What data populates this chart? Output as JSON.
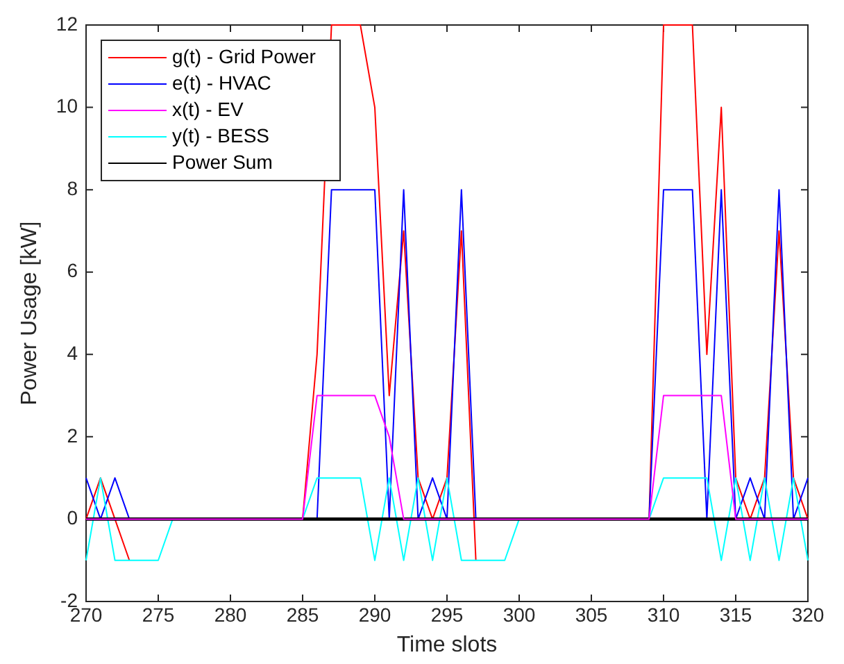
{
  "chart_data": {
    "type": "line",
    "xlabel": "Time slots",
    "ylabel": "Power Usage [kW]",
    "x": [
      270,
      271,
      272,
      273,
      274,
      275,
      276,
      277,
      278,
      279,
      280,
      281,
      282,
      283,
      284,
      285,
      286,
      287,
      288,
      289,
      290,
      291,
      292,
      293,
      294,
      295,
      296,
      297,
      298,
      299,
      300,
      301,
      302,
      303,
      304,
      305,
      306,
      307,
      308,
      309,
      310,
      311,
      312,
      313,
      314,
      315,
      316,
      317,
      318,
      319,
      320
    ],
    "series": [
      {
        "name": "g(t) - Grid Power",
        "color": "#ff0000",
        "values": [
          0,
          1,
          0,
          -1,
          null,
          null,
          0,
          0,
          0,
          0,
          0,
          0,
          0,
          0,
          0,
          0,
          4,
          12,
          12,
          12,
          10,
          3,
          7,
          1,
          0,
          1,
          7,
          -1,
          null,
          null,
          0,
          0,
          0,
          0,
          0,
          0,
          0,
          0,
          0,
          0,
          12,
          12,
          12,
          4,
          10,
          1,
          0,
          1,
          7,
          1,
          0
        ]
      },
      {
        "name": "e(t) - HVAC",
        "color": "#0000ff",
        "values": [
          1,
          0,
          1,
          0,
          0,
          0,
          0,
          0,
          0,
          0,
          0,
          0,
          0,
          0,
          0,
          0,
          0,
          8,
          8,
          8,
          8,
          0,
          8,
          0,
          1,
          0,
          8,
          0,
          0,
          0,
          0,
          0,
          0,
          0,
          0,
          0,
          0,
          0,
          0,
          0,
          8,
          8,
          8,
          0,
          8,
          0,
          1,
          0,
          8,
          0,
          1
        ]
      },
      {
        "name": "x(t) - EV",
        "color": "#ff00ff",
        "values": [
          0,
          0,
          0,
          0,
          0,
          0,
          0,
          0,
          0,
          0,
          0,
          0,
          0,
          0,
          0,
          0,
          3,
          3,
          3,
          3,
          3,
          2,
          0,
          0,
          0,
          0,
          0,
          0,
          0,
          0,
          0,
          0,
          0,
          0,
          0,
          0,
          0,
          0,
          0,
          0,
          3,
          3,
          3,
          3,
          3,
          0,
          0,
          0,
          0,
          0,
          0
        ]
      },
      {
        "name": "y(t) - BESS",
        "color": "#00ffff",
        "values": [
          -1,
          1,
          -1,
          -1,
          -1,
          -1,
          0,
          0,
          0,
          0,
          0,
          0,
          0,
          0,
          0,
          0,
          1,
          1,
          1,
          1,
          -1,
          1,
          -1,
          1,
          -1,
          1,
          -1,
          -1,
          -1,
          -1,
          0,
          0,
          0,
          0,
          0,
          0,
          0,
          0,
          0,
          0,
          1,
          1,
          1,
          1,
          -1,
          1,
          -1,
          1,
          -1,
          1,
          -1
        ]
      },
      {
        "name": "Power Sum",
        "color": "#000000",
        "values": [
          0,
          0,
          0,
          0,
          0,
          0,
          0,
          0,
          0,
          0,
          0,
          0,
          0,
          0,
          0,
          0,
          0,
          0,
          0,
          0,
          0,
          0,
          0,
          0,
          0,
          0,
          0,
          0,
          0,
          0,
          0,
          0,
          0,
          0,
          0,
          0,
          0,
          0,
          0,
          0,
          0,
          0,
          0,
          0,
          0,
          0,
          0,
          0,
          0,
          0,
          0
        ]
      }
    ],
    "xlim": [
      270,
      320
    ],
    "xticks": [
      270,
      275,
      280,
      285,
      290,
      295,
      300,
      305,
      310,
      315,
      320
    ],
    "ylim": [
      -2,
      12
    ],
    "yticks": [
      -2,
      0,
      2,
      4,
      6,
      8,
      10,
      12
    ],
    "grid": false,
    "legend": "top left",
    "marker": "none",
    "line_style": "solid"
  }
}
